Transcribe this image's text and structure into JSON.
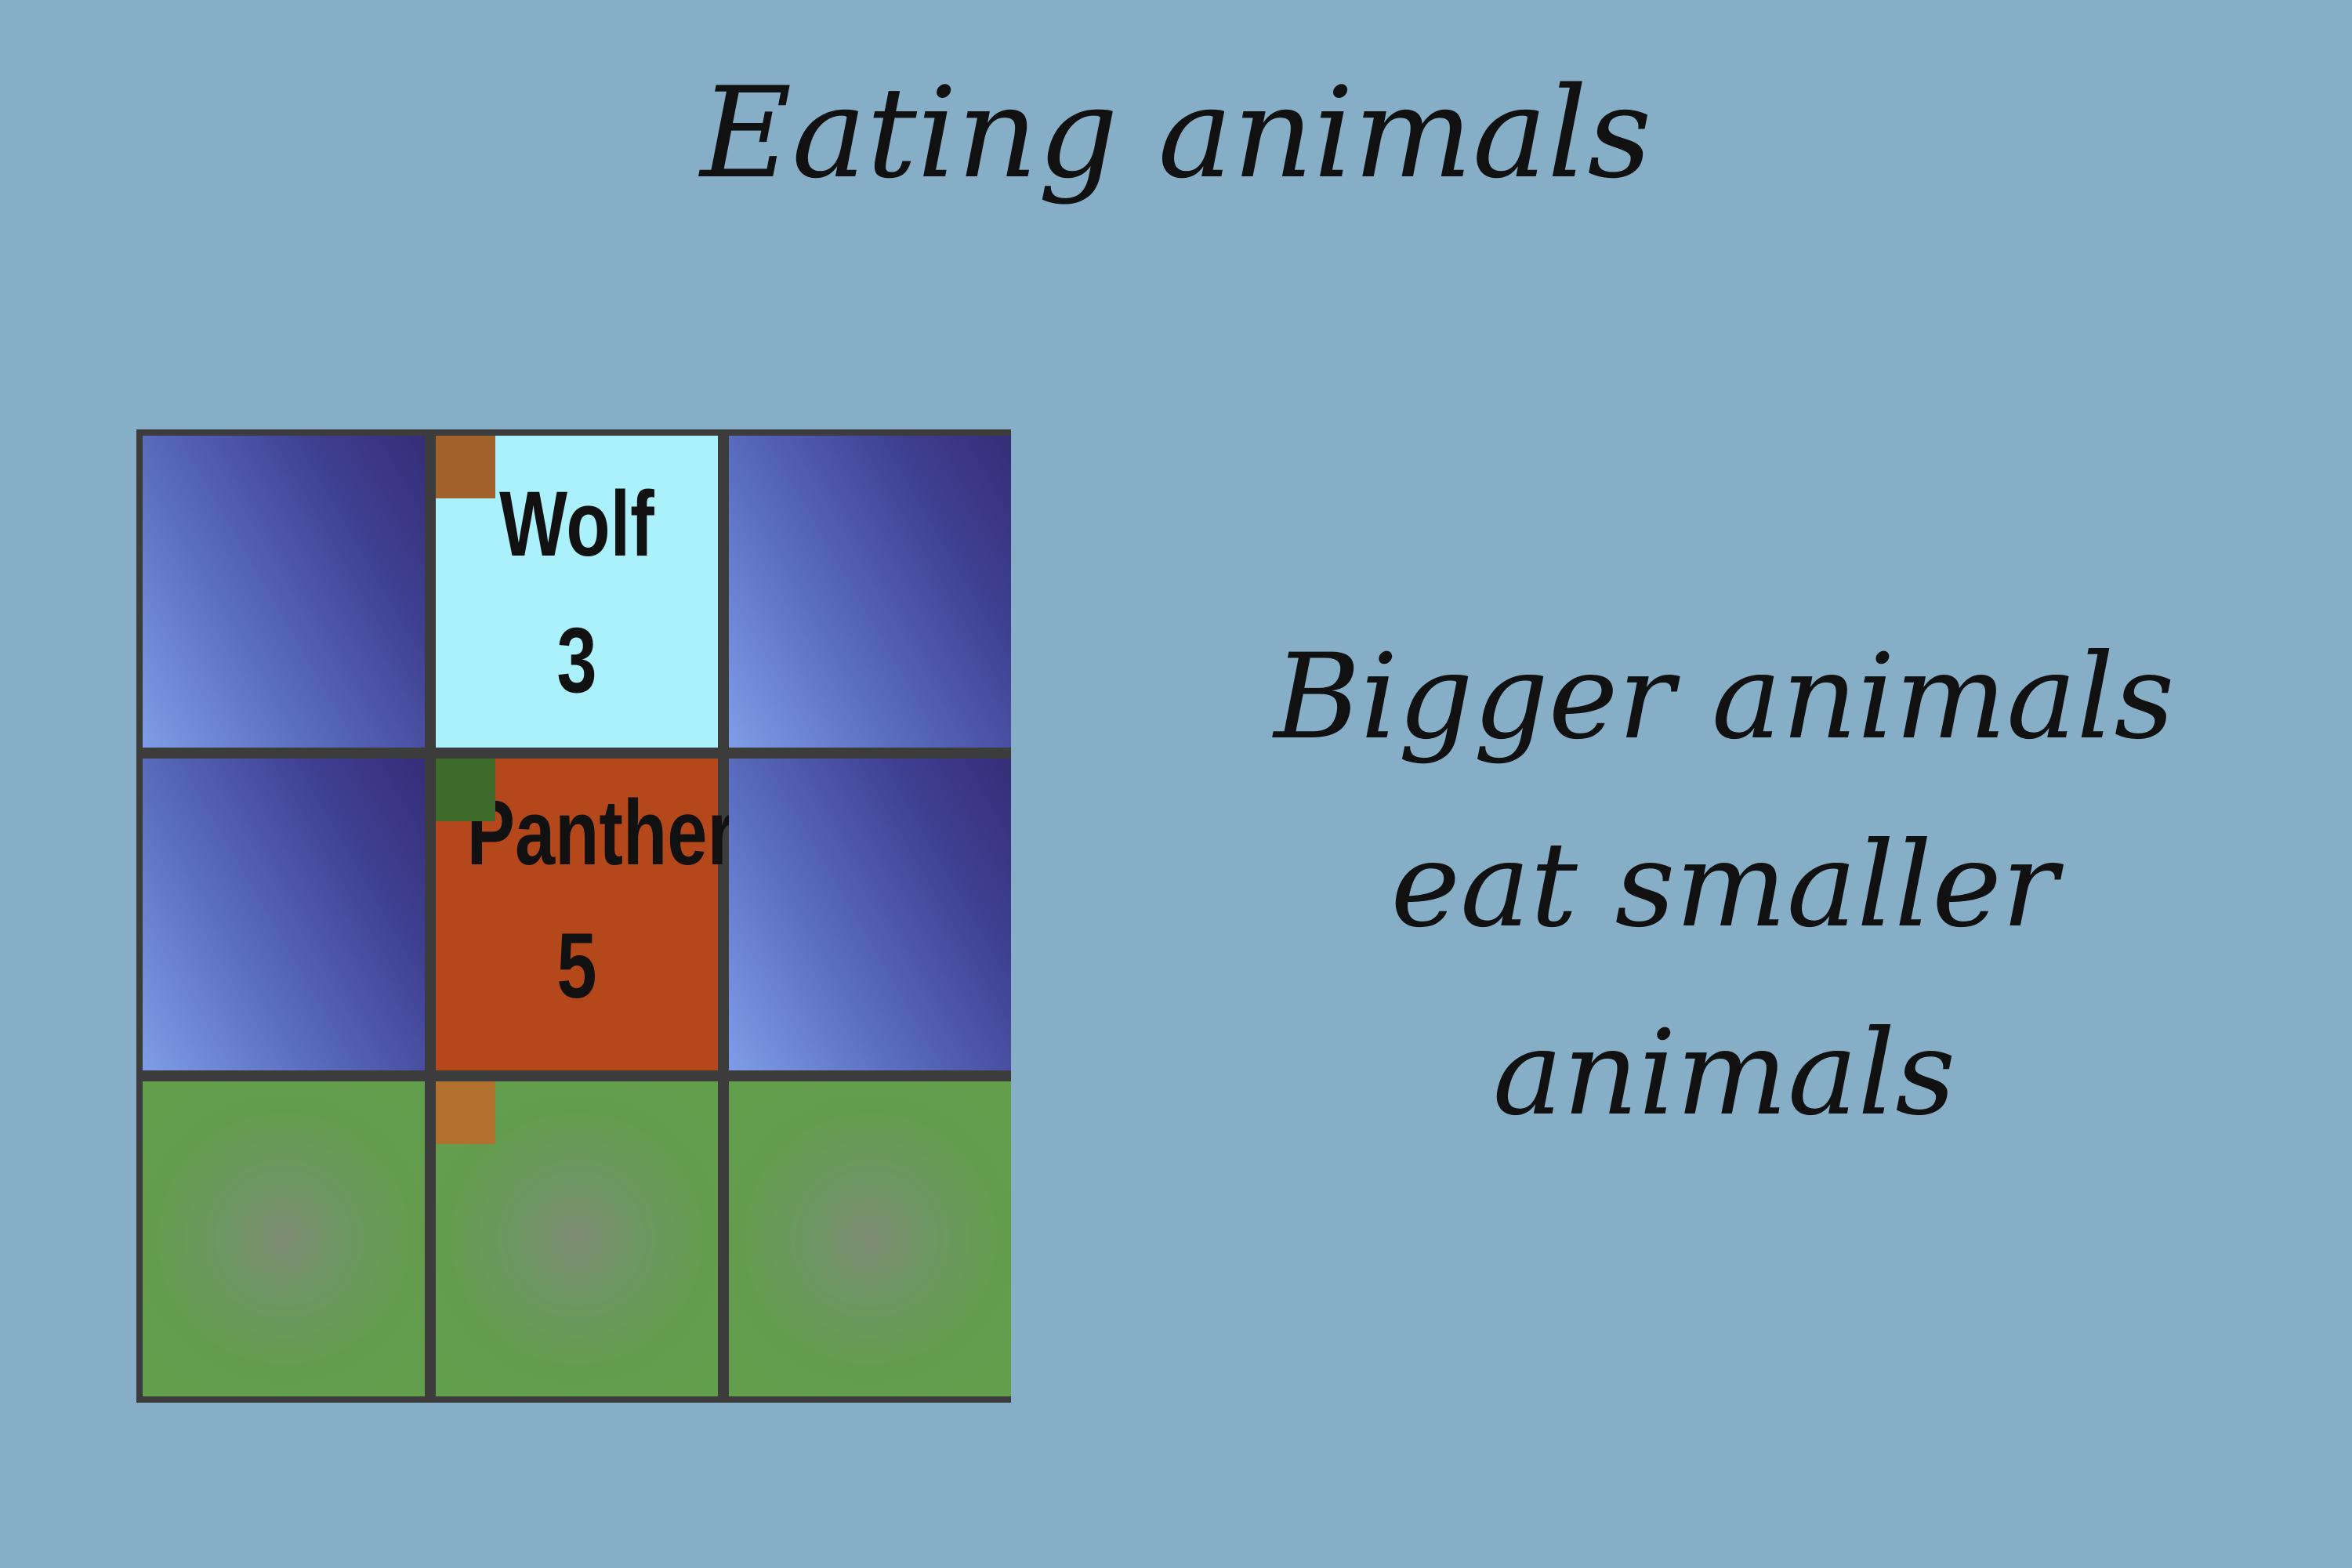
{
  "slide": {
    "title": "Eating animals",
    "rule_lines": [
      "Bigger animals",
      "eat smaller",
      "animals"
    ]
  },
  "colors": {
    "background": "#87aec7",
    "water": "#3f3f92",
    "land": "#629f4b",
    "wolf_tile": "#aaf1fb",
    "panther_tile": "#b4481b",
    "grid_line": "#3c3c3c"
  },
  "board": {
    "rows": 3,
    "cols": 3,
    "cells": [
      [
        "water",
        "wolf",
        "water"
      ],
      [
        "water",
        "panther",
        "water"
      ],
      [
        "land",
        "land",
        "land"
      ]
    ],
    "wolf": {
      "name": "Wolf",
      "strength": "3"
    },
    "panther": {
      "name": "Panther",
      "strength": "5"
    }
  }
}
